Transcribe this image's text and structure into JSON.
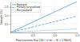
{
  "chart_data": {
    "type": "line",
    "xlabel": "Fast neutron flux (10²⁵ n·m⁻², E > 1 MeV)",
    "ylabel": "Growth (%)",
    "xlim": [
      0,
      1.5
    ],
    "ylim": [
      0,
      1.8
    ],
    "xticks": [
      0.5,
      {
        "value": 1.0,
        "label": "1.0"
      },
      1.5
    ],
    "yticks": [
      0.5,
      {
        "value": 1.0,
        "label": "1.0"
      },
      1.5
    ],
    "series": [
      {
        "name": "Equiaxed",
        "x": [
          0,
          1.5
        ],
        "values": [
          0,
          1.8
        ],
        "color": "#7ab0d8",
        "line_style": "solid"
      },
      {
        "name": "Partially recrystallized",
        "x": [
          0,
          1.5
        ],
        "values": [
          0,
          0.95
        ],
        "color": "#7ab0d8",
        "line_style": "dashed"
      },
      {
        "name": "Recrystallized",
        "x": [
          0,
          0.3,
          0.6,
          0.9,
          1.2,
          1.5
        ],
        "values": [
          0,
          0.05,
          0.09,
          0.13,
          0.17,
          0.21
        ],
        "color": "#7ab0d8",
        "line_style": "dotted"
      }
    ],
    "grid": true,
    "legend": "upper left"
  }
}
